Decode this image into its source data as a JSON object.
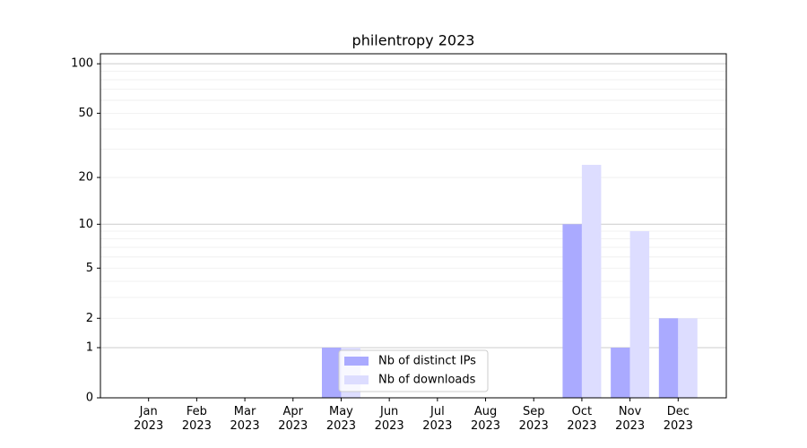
{
  "chart_data": {
    "type": "bar",
    "title": "philentropy 2023",
    "categories": [
      "Jan\n2023",
      "Feb\n2023",
      "Mar\n2023",
      "Apr\n2023",
      "May\n2023",
      "Jun\n2023",
      "Jul\n2023",
      "Aug\n2023",
      "Sep\n2023",
      "Oct\n2023",
      "Nov\n2023",
      "Dec\n2023"
    ],
    "series": [
      {
        "name": "Nb of distinct IPs",
        "color": "#aaaaff",
        "values": [
          0,
          0,
          0,
          0,
          1,
          0,
          0,
          0,
          0,
          10,
          1,
          2
        ]
      },
      {
        "name": "Nb of downloads",
        "color": "#ddddff",
        "values": [
          0,
          0,
          0,
          0,
          1,
          0,
          0,
          0,
          0,
          24,
          9,
          2
        ]
      }
    ],
    "yscale": "log1p",
    "ylim": [
      0,
      115
    ],
    "yticks": [
      0,
      1,
      2,
      5,
      10,
      20,
      50,
      100
    ],
    "grid": true,
    "major_gridlines": [
      1,
      10,
      100
    ],
    "minor_gridlines": [
      2,
      3,
      4,
      5,
      6,
      7,
      8,
      9,
      20,
      30,
      40,
      50,
      60,
      70,
      80,
      90
    ],
    "legend": "lower center"
  }
}
